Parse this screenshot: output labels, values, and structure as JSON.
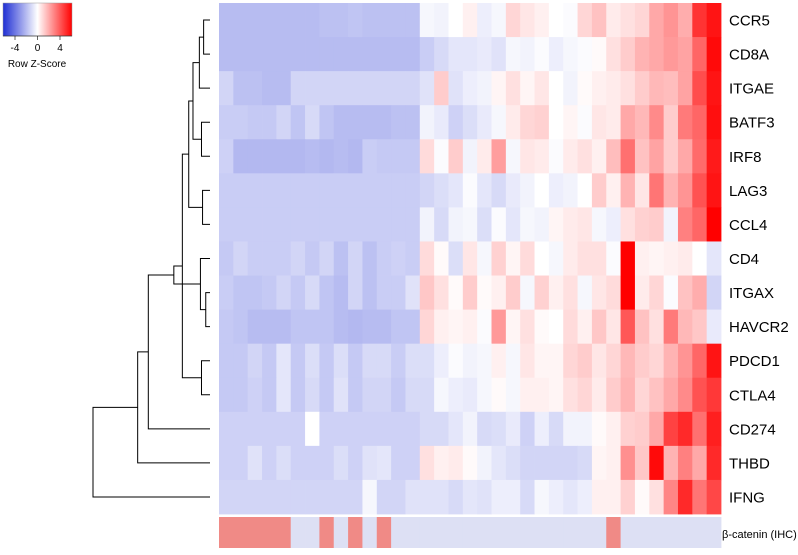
{
  "chart_data": {
    "type": "heatmap",
    "rows": [
      "CCR5",
      "CD8A",
      "ITGAE",
      "BATF3",
      "IRF8",
      "LAG3",
      "CCL4",
      "CD4",
      "ITGAX",
      "HAVCR2",
      "PDCD1",
      "CTLA4",
      "CD274",
      "THBD",
      "IFNG"
    ],
    "n_samples": 35,
    "values": [
      [
        -1.6,
        -1.6,
        -1.6,
        -1.6,
        -1.6,
        -1.6,
        -1.6,
        -1.5,
        -1.5,
        -1.4,
        -1.5,
        -1.5,
        -1.5,
        -1.5,
        -0.2,
        -0.3,
        0.0,
        0.3,
        -0.4,
        -0.2,
        0.8,
        0.5,
        0.3,
        0.0,
        -0.1,
        0.8,
        1.2,
        0.4,
        0.6,
        0.8,
        1.7,
        2.1,
        1.6,
        4.0,
        4.6
      ],
      [
        -1.6,
        -1.6,
        -1.6,
        -1.6,
        -1.6,
        -1.6,
        -1.6,
        -1.6,
        -1.6,
        -1.6,
        -1.6,
        -1.6,
        -1.6,
        -1.6,
        -1.2,
        -0.9,
        -0.6,
        -0.6,
        -0.5,
        -0.7,
        -0.2,
        -0.3,
        -0.1,
        -0.4,
        -0.2,
        -0.1,
        0.1,
        0.6,
        1.0,
        1.5,
        1.7,
        2.0,
        1.8,
        3.0,
        4.8
      ],
      [
        -1.0,
        -1.5,
        -1.5,
        -1.6,
        -1.6,
        -1.0,
        -1.0,
        -1.0,
        -1.0,
        -1.0,
        -1.0,
        -1.0,
        -1.0,
        -1.0,
        -0.7,
        1.0,
        -0.7,
        -0.4,
        -0.3,
        0.2,
        0.6,
        0.2,
        0.5,
        0.0,
        -0.3,
        0.1,
        0.3,
        0.4,
        0.6,
        1.0,
        1.4,
        1.3,
        1.8,
        3.5,
        4.6
      ],
      [
        -1.2,
        -1.2,
        -1.3,
        -1.3,
        -1.0,
        -1.4,
        -0.9,
        -1.4,
        -1.6,
        -1.6,
        -1.6,
        -1.6,
        -1.5,
        -1.5,
        -0.3,
        -0.5,
        -1.1,
        -0.8,
        -0.5,
        -0.2,
        0.4,
        0.8,
        0.9,
        0.0,
        0.2,
        -0.1,
        0.5,
        0.4,
        1.7,
        1.4,
        2.3,
        1.0,
        2.6,
        3.0,
        4.7
      ],
      [
        -1.1,
        -1.7,
        -1.7,
        -1.7,
        -1.7,
        -1.7,
        -1.6,
        -1.7,
        -1.6,
        -1.7,
        -1.2,
        -1.3,
        -1.3,
        -1.3,
        0.7,
        -0.1,
        1.0,
        -0.3,
        0.4,
        1.9,
        -0.2,
        0.5,
        0.4,
        -0.1,
        0.4,
        0.6,
        0.3,
        1.3,
        2.8,
        1.2,
        1.8,
        1.0,
        1.7,
        2.9,
        4.5
      ],
      [
        -1.2,
        -1.2,
        -1.2,
        -1.2,
        -1.2,
        -1.2,
        -1.2,
        -1.2,
        -1.2,
        -1.2,
        -1.2,
        -1.2,
        -1.2,
        -1.2,
        -1.0,
        -0.8,
        -0.6,
        -0.1,
        -0.6,
        -0.9,
        -0.5,
        -0.3,
        0.0,
        -0.4,
        -0.3,
        0.0,
        1.0,
        0.3,
        1.5,
        0.5,
        2.7,
        1.5,
        2.1,
        3.4,
        4.6
      ],
      [
        -1.2,
        -1.2,
        -1.2,
        -1.2,
        -1.2,
        -1.2,
        -1.2,
        -1.2,
        -1.2,
        -1.2,
        -1.2,
        -1.2,
        -1.2,
        -1.2,
        -0.3,
        -0.9,
        -0.3,
        -0.2,
        -0.8,
        -0.1,
        -0.6,
        -0.2,
        -0.3,
        0.2,
        0.4,
        0.5,
        -0.2,
        -0.4,
        0.6,
        0.9,
        1.0,
        -0.3,
        2.5,
        3.0,
        5.0
      ],
      [
        -1.3,
        -1.0,
        -1.2,
        -1.2,
        -1.2,
        -1.0,
        -1.3,
        -1.0,
        -1.5,
        -1.0,
        -1.5,
        -1.2,
        -1.1,
        -1.2,
        0.7,
        0.1,
        -0.8,
        0.5,
        -0.2,
        0.9,
        0.2,
        0.7,
        0.0,
        -0.2,
        0.4,
        0.6,
        0.6,
        -0.1,
        5.0,
        0.3,
        0.2,
        0.3,
        0.4,
        0.0,
        -0.6
      ],
      [
        -1.2,
        -1.4,
        -1.4,
        -1.3,
        -1.0,
        -1.3,
        -0.9,
        -1.4,
        -1.6,
        -1.0,
        -1.5,
        -1.2,
        -1.2,
        -0.7,
        1.1,
        0.6,
        0.1,
        1.0,
        0.1,
        0.3,
        1.0,
        -0.2,
        0.9,
        0.3,
        0.6,
        -0.2,
        0.5,
        0.7,
        5.0,
        0.4,
        0.8,
        -0.1,
        1.2,
        1.6,
        -1.0
      ],
      [
        -1.3,
        -1.4,
        -1.6,
        -1.6,
        -1.6,
        -1.4,
        -1.4,
        -1.4,
        -1.6,
        -1.7,
        -1.6,
        -1.6,
        -1.4,
        -1.4,
        0.8,
        0.3,
        0.2,
        0.3,
        -0.1,
        2.0,
        0.2,
        0.6,
        0.1,
        0.0,
        0.7,
        0.3,
        1.1,
        0.5,
        3.3,
        1.2,
        0.6,
        2.6,
        1.4,
        1.1,
        -0.5
      ],
      [
        -1.3,
        -1.3,
        -1.0,
        -1.3,
        -0.6,
        -1.3,
        -0.8,
        -1.3,
        -0.8,
        -1.3,
        -0.9,
        -0.9,
        -1.2,
        -0.8,
        -0.8,
        -0.4,
        -0.1,
        -0.3,
        -0.2,
        0.3,
        -0.2,
        0.5,
        0.2,
        0.2,
        0.8,
        1.0,
        0.5,
        0.8,
        1.4,
        1.0,
        0.8,
        1.5,
        2.1,
        3.0,
        4.6
      ],
      [
        -1.3,
        -1.3,
        -1.1,
        -1.3,
        -0.6,
        -1.3,
        -0.9,
        -1.3,
        -0.7,
        -1.3,
        -1.0,
        -1.0,
        -1.3,
        -0.9,
        -0.9,
        -0.2,
        -0.4,
        -0.5,
        -0.2,
        0.1,
        -0.2,
        0.3,
        0.3,
        0.2,
        0.6,
        0.8,
        0.4,
        1.0,
        1.5,
        0.8,
        1.2,
        1.7,
        2.3,
        3.4,
        3.9
      ],
      [
        -1.1,
        -1.1,
        -1.1,
        -1.1,
        -1.1,
        -1.1,
        0.0,
        -1.1,
        -1.1,
        -1.1,
        -1.1,
        -1.1,
        -1.1,
        -1.1,
        -0.9,
        -0.9,
        -0.6,
        -0.3,
        -0.9,
        -0.8,
        -0.5,
        -1.1,
        -0.4,
        -0.9,
        -0.3,
        -0.3,
        0.1,
        0.3,
        0.9,
        1.0,
        1.7,
        3.7,
        4.2,
        2.8,
        4.4
      ],
      [
        -1.1,
        -1.1,
        -0.7,
        -1.1,
        -0.8,
        -1.1,
        -1.1,
        -1.1,
        -0.8,
        -1.1,
        -0.7,
        -0.6,
        -1.1,
        -1.1,
        0.6,
        0.3,
        0.4,
        0.1,
        -0.3,
        -0.6,
        -0.8,
        -1.0,
        -1.0,
        -1.0,
        -1.0,
        -0.9,
        0.2,
        0.3,
        2.2,
        1.1,
        4.8,
        1.5,
        2.5,
        1.7,
        4.2
      ],
      [
        -1.0,
        -1.0,
        -1.0,
        -1.0,
        -1.0,
        -1.0,
        -1.0,
        -1.0,
        -1.0,
        -1.0,
        -0.2,
        -1.0,
        -1.0,
        -0.7,
        -0.7,
        -0.7,
        -0.9,
        -0.6,
        -0.7,
        -0.4,
        -0.4,
        -0.9,
        -0.2,
        -0.4,
        -0.6,
        -0.4,
        0.3,
        0.3,
        0.9,
        0.1,
        0.6,
        2.4,
        4.2,
        2.7,
        3.6
      ]
    ],
    "annotation_label": "β-catenin (IHC)",
    "annotation": [
      1,
      1,
      1,
      1,
      1,
      0,
      0,
      1,
      0,
      1,
      0,
      1,
      0,
      0,
      0,
      0,
      0,
      0,
      0,
      0,
      0,
      0,
      0,
      0,
      0,
      0,
      0,
      1,
      0,
      0,
      0,
      0,
      0,
      0,
      0
    ],
    "annotation_colors": {
      "high": "#f08a86",
      "low": "#dde0f4"
    },
    "color_scale": {
      "low": "#1f2fd4",
      "mid": "#ffffff",
      "high": "#ff0000",
      "range": [
        -5,
        5
      ]
    },
    "legend": {
      "ticks": [
        "-4",
        "0",
        "4"
      ],
      "title": "Row Z-Score"
    },
    "dendrogram": {
      "leaves": [
        "CCR5",
        "CD8A",
        "ITGAE",
        "BATF3",
        "IRF8",
        "LAG3",
        "CCL4",
        "CD4",
        "ITGAX",
        "HAVCR2",
        "PDCD1",
        "CTLA4",
        "CD274",
        "THBD",
        "IFNG"
      ],
      "merges": [
        [
          0,
          1,
          0.03
        ],
        [
          3,
          4,
          0.04
        ],
        [
          5,
          6,
          0.035
        ],
        [
          8,
          9,
          0.02
        ],
        [
          10,
          11,
          0.04
        ],
        [
          15,
          2,
          0.05
        ],
        [
          16,
          20,
          0.08
        ],
        [
          7,
          18,
          0.045
        ],
        [
          17,
          21,
          0.1
        ],
        [
          23,
          19,
          0.13
        ],
        [
          22,
          24,
          0.17
        ],
        [
          12,
          25,
          0.29
        ],
        [
          13,
          26,
          0.34
        ],
        [
          14,
          27,
          0.55
        ]
      ],
      "max_height": 0.55
    }
  }
}
